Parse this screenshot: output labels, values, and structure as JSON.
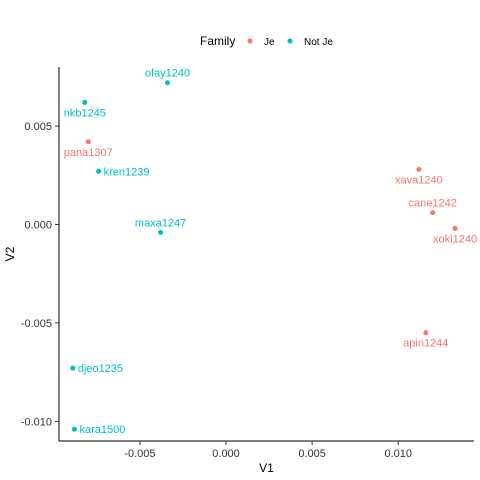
{
  "chart_data": {
    "type": "scatter",
    "xlabel": "V1",
    "ylabel": "V2",
    "xlim": [
      -0.0097,
      0.0144
    ],
    "ylim": [
      -0.011,
      0.008
    ],
    "x_ticks": [
      {
        "value": -0.005,
        "label": "-0.005"
      },
      {
        "value": 0.0,
        "label": "0.000"
      },
      {
        "value": 0.005,
        "label": "0.005"
      },
      {
        "value": 0.01,
        "label": "0.010"
      }
    ],
    "y_ticks": [
      {
        "value": 0.005,
        "label": "0.005"
      },
      {
        "value": 0.0,
        "label": "0.000"
      },
      {
        "value": -0.005,
        "label": "-0.005"
      },
      {
        "value": -0.01,
        "label": "-0.010"
      }
    ],
    "grid": false,
    "legend": {
      "position": "top",
      "title": "Family",
      "entries": [
        {
          "name": "Je",
          "color": "#F8766D"
        },
        {
          "name": "Not Je",
          "color": "#00BFC4"
        }
      ]
    },
    "series": [
      {
        "name": "Je",
        "color": "#F8766D",
        "points": [
          {
            "label": "pana1307",
            "x": -0.008,
            "y": 0.0042,
            "label_pos": "below"
          },
          {
            "label": "xava1240",
            "x": 0.0112,
            "y": 0.0028,
            "label_pos": "below"
          },
          {
            "label": "cane1242",
            "x": 0.012,
            "y": 0.0006,
            "label_pos": "above"
          },
          {
            "label": "xokl1240",
            "x": 0.0133,
            "y": -0.0002,
            "label_pos": "below"
          },
          {
            "label": "apin1244",
            "x": 0.0116,
            "y": -0.0055,
            "label_pos": "below"
          }
        ]
      },
      {
        "name": "Not Je",
        "color": "#00BFC4",
        "points": [
          {
            "label": "ofay1240",
            "x": -0.0034,
            "y": 0.0072,
            "label_pos": "above"
          },
          {
            "label": "nkb1245",
            "x": -0.0082,
            "y": 0.0062,
            "label_pos": "below"
          },
          {
            "label": "kren1239",
            "x": -0.0074,
            "y": 0.0027,
            "label_pos": "right"
          },
          {
            "label": "maxa1247",
            "x": -0.0038,
            "y": -0.0004,
            "label_pos": "above"
          },
          {
            "label": "djeo1235",
            "x": -0.0089,
            "y": -0.0073,
            "label_pos": "right"
          },
          {
            "label": "kara1500",
            "x": -0.0088,
            "y": -0.0104,
            "label_pos": "right"
          }
        ]
      }
    ]
  }
}
